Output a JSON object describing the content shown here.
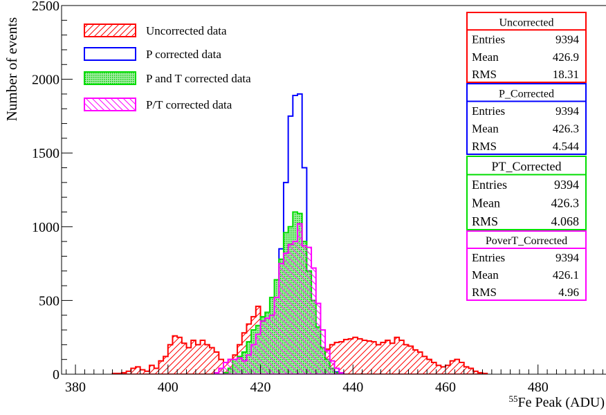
{
  "chart_data": {
    "type": "histogram",
    "xlabel_super": "55",
    "xlabel": "Fe Peak (ADU)",
    "ylabel": "Number of events",
    "xlim": [
      377,
      495
    ],
    "ylim": [
      0,
      2500
    ],
    "x_ticks": [
      380,
      400,
      420,
      440,
      460,
      480
    ],
    "y_ticks": [
      0,
      500,
      1000,
      1500,
      2000,
      2500
    ],
    "grid": false,
    "legend_position": "top-left",
    "series": [
      {
        "name": "Uncorrected data",
        "color": "#ff0000",
        "fill": "hatch-diagonal",
        "stats_title": "Uncorrected",
        "stats": {
          "entries": "9394",
          "mean": "426.9",
          "rms": "18.31"
        },
        "bins": [
          [
            388,
            5
          ],
          [
            389,
            5
          ],
          [
            390,
            10
          ],
          [
            391,
            20
          ],
          [
            392,
            40
          ],
          [
            393,
            50
          ],
          [
            394,
            30
          ],
          [
            395,
            20
          ],
          [
            396,
            60
          ],
          [
            397,
            40
          ],
          [
            398,
            90
          ],
          [
            399,
            120
          ],
          [
            400,
            200
          ],
          [
            401,
            260
          ],
          [
            402,
            250
          ],
          [
            403,
            210
          ],
          [
            404,
            180
          ],
          [
            405,
            230
          ],
          [
            406,
            200
          ],
          [
            407,
            230
          ],
          [
            408,
            200
          ],
          [
            409,
            180
          ],
          [
            410,
            150
          ],
          [
            411,
            100
          ],
          [
            412,
            80
          ],
          [
            413,
            100
          ],
          [
            414,
            130
          ],
          [
            415,
            200
          ],
          [
            416,
            280
          ],
          [
            417,
            340
          ],
          [
            418,
            390
          ],
          [
            419,
            460
          ],
          [
            420,
            380
          ],
          [
            421,
            310
          ],
          [
            422,
            280
          ],
          [
            423,
            200
          ],
          [
            424,
            150
          ],
          [
            425,
            100
          ],
          [
            426,
            80
          ],
          [
            427,
            70
          ],
          [
            428,
            70
          ],
          [
            429,
            60
          ],
          [
            430,
            70
          ],
          [
            431,
            60
          ],
          [
            432,
            90
          ],
          [
            433,
            140
          ],
          [
            434,
            170
          ],
          [
            435,
            200
          ],
          [
            436,
            215
          ],
          [
            437,
            220
          ],
          [
            438,
            235
          ],
          [
            439,
            240
          ],
          [
            440,
            250
          ],
          [
            441,
            240
          ],
          [
            442,
            230
          ],
          [
            443,
            225
          ],
          [
            444,
            220
          ],
          [
            445,
            200
          ],
          [
            446,
            215
          ],
          [
            447,
            230
          ],
          [
            448,
            210
          ],
          [
            449,
            250
          ],
          [
            450,
            230
          ],
          [
            451,
            200
          ],
          [
            452,
            190
          ],
          [
            453,
            165
          ],
          [
            454,
            150
          ],
          [
            455,
            120
          ],
          [
            456,
            100
          ],
          [
            457,
            80
          ],
          [
            458,
            60
          ],
          [
            459,
            50
          ],
          [
            460,
            60
          ],
          [
            461,
            90
          ],
          [
            462,
            100
          ],
          [
            463,
            80
          ],
          [
            464,
            50
          ],
          [
            465,
            40
          ],
          [
            466,
            20
          ],
          [
            467,
            10
          ],
          [
            468,
            5
          ]
        ]
      },
      {
        "name": "P corrected data",
        "color": "#0000ff",
        "fill": "none",
        "stats_title": "P_Corrected",
        "stats": {
          "entries": "9394",
          "mean": "426.3",
          "rms": "4.544"
        },
        "bins": [
          [
            415,
            5
          ],
          [
            416,
            15
          ],
          [
            417,
            30
          ],
          [
            418,
            60
          ],
          [
            419,
            100
          ],
          [
            420,
            180
          ],
          [
            421,
            280
          ],
          [
            422,
            420
          ],
          [
            423,
            520
          ],
          [
            424,
            850
          ],
          [
            425,
            1300
          ],
          [
            426,
            1750
          ],
          [
            427,
            1890
          ],
          [
            428,
            1900
          ],
          [
            429,
            1400
          ],
          [
            430,
            700
          ],
          [
            431,
            350
          ],
          [
            432,
            170
          ],
          [
            433,
            90
          ],
          [
            434,
            50
          ],
          [
            435,
            30
          ],
          [
            436,
            15
          ],
          [
            437,
            5
          ]
        ]
      },
      {
        "name": "P and T corrected data",
        "color": "#00dd00",
        "fill": "dense",
        "stats_title": "PT_Corrected",
        "stats": {
          "entries": "9394",
          "mean": "426.3",
          "rms": "4.068"
        },
        "bins": [
          [
            412,
            10
          ],
          [
            413,
            40
          ],
          [
            414,
            100
          ],
          [
            415,
            120
          ],
          [
            416,
            150
          ],
          [
            417,
            220
          ],
          [
            418,
            300
          ],
          [
            419,
            330
          ],
          [
            420,
            390
          ],
          [
            421,
            420
          ],
          [
            422,
            520
          ],
          [
            423,
            640
          ],
          [
            424,
            780
          ],
          [
            425,
            960
          ],
          [
            426,
            1000
          ],
          [
            427,
            1100
          ],
          [
            428,
            1090
          ],
          [
            429,
            900
          ],
          [
            430,
            700
          ],
          [
            431,
            500
          ],
          [
            432,
            320
          ],
          [
            433,
            180
          ],
          [
            434,
            100
          ],
          [
            435,
            40
          ],
          [
            436,
            10
          ]
        ]
      },
      {
        "name": "P/T corrected data",
        "color": "#ff00ff",
        "fill": "hatch-reverse",
        "stats_title": "PoverT_Corrected",
        "stats": {
          "entries": "9394",
          "mean": "426.1",
          "rms": "4.96"
        },
        "bins": [
          [
            410,
            10
          ],
          [
            411,
            40
          ],
          [
            412,
            80
          ],
          [
            413,
            100
          ],
          [
            414,
            100
          ],
          [
            415,
            110
          ],
          [
            416,
            90
          ],
          [
            417,
            130
          ],
          [
            418,
            200
          ],
          [
            419,
            270
          ],
          [
            420,
            360
          ],
          [
            421,
            380
          ],
          [
            422,
            400
          ],
          [
            423,
            520
          ],
          [
            424,
            750
          ],
          [
            425,
            820
          ],
          [
            426,
            880
          ],
          [
            427,
            900
          ],
          [
            428,
            1020
          ],
          [
            429,
            870
          ],
          [
            430,
            860
          ],
          [
            431,
            720
          ],
          [
            432,
            480
          ],
          [
            433,
            300
          ],
          [
            434,
            160
          ],
          [
            435,
            90
          ],
          [
            436,
            40
          ],
          [
            437,
            10
          ]
        ]
      }
    ],
    "stats_labels": {
      "entries": "Entries",
      "mean": "Mean",
      "rms": "RMS"
    }
  }
}
